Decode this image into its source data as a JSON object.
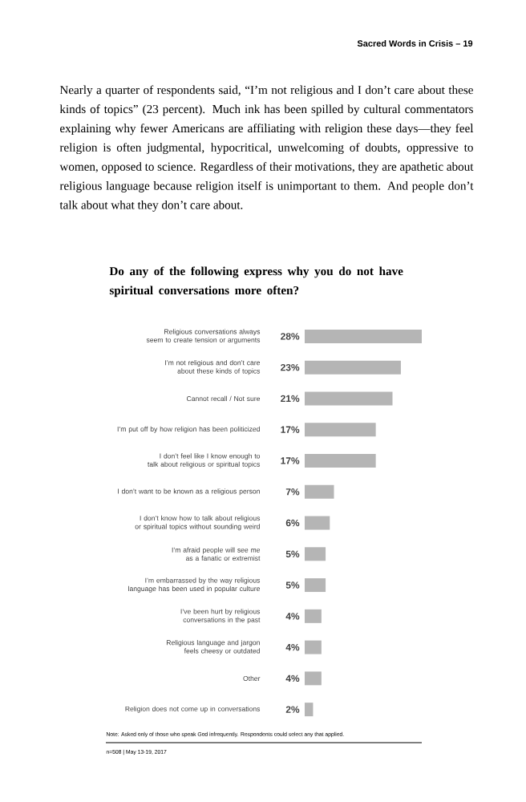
{
  "chart_data": {
    "type": "bar",
    "orientation": "horizontal",
    "title": "Do any of the following express why you do not have spiritual conversations more often?",
    "categories": [
      "Religious conversations always seem to create tension or arguments",
      "I’m not religious and don’t care about these kinds of topics",
      "Cannot recall / Not sure",
      "I’m put off by how religion has been politicized",
      "I don’t feel like I know enough to talk about religious or spiritual topics",
      "I don’t want to be known as a religious person",
      "I don’t know how to talk about religious or spiritual topics without sounding weird",
      "I’m afraid people will see me as a fanatic or extremist",
      "I’m embarrassed by the way religious language has been used in popular culture",
      "I’ve been hurt by religious conversations in the past",
      "Religious language and jargon feels cheesy or outdated",
      "Other",
      "Religion does not come up in conversations"
    ],
    "values": [
      28,
      23,
      21,
      17,
      17,
      7,
      6,
      5,
      5,
      4,
      4,
      4,
      2
    ],
    "value_labels": [
      "28%",
      "23%",
      "21%",
      "17%",
      "17%",
      "7%",
      "6%",
      "5%",
      "5%",
      "4%",
      "4%",
      "4%",
      "2%"
    ],
    "color": "#b5b5b5",
    "annotations": [
      "Sacred Words in Crisis  –  19",
      "Nearly a quarter of respondents said, “I’m not religious and I don’t care about these kinds of topics” (23 percent). Much ink has been spilled by cultural commentators explaining why fewer Americans are affiliating with religion these days—they feel religion is often judgmental, hypocritical, unwelcoming of doubts, oppressive to women, opposed to science. Regardless of their motivations, they are apathetic about religious language because religion itself is unimportant to them. And people don’t talk about what they don’t care about.",
      "Note: Asked only of those who speak God infrequently. Respondents could select any that applied.",
      "n=508 | May 13-19, 2017"
    ]
  }
}
